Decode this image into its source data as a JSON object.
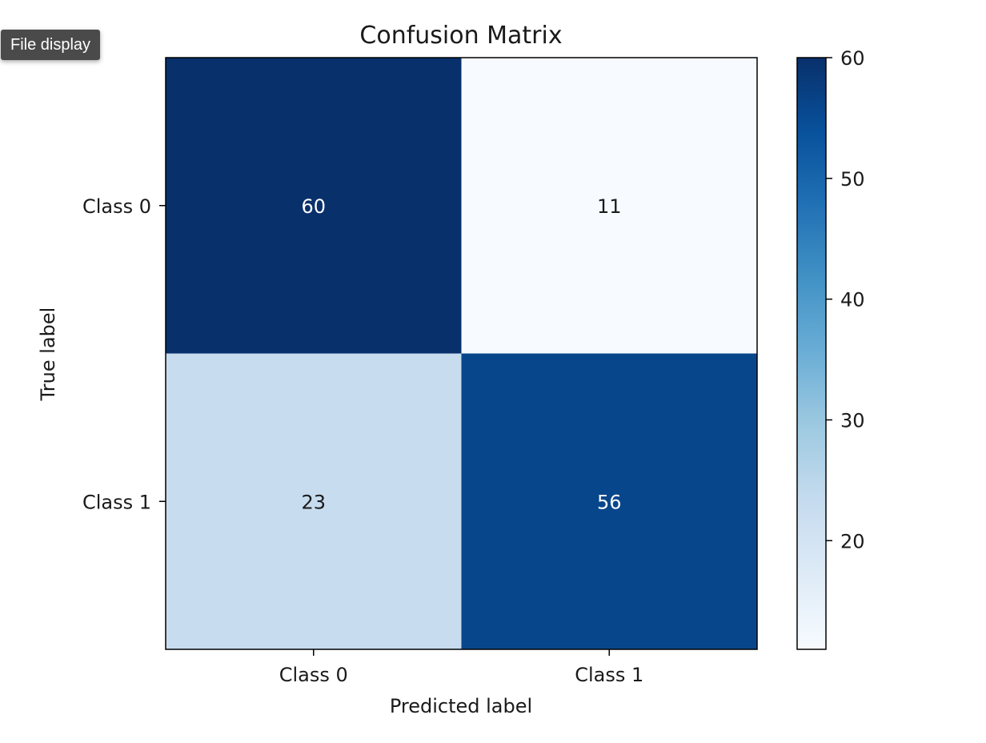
{
  "tooltip": {
    "label": "File display"
  },
  "chart_data": {
    "type": "heatmap",
    "title": "Confusion Matrix",
    "xlabel": "Predicted label",
    "ylabel": "True label",
    "x_categories": [
      "Class 0",
      "Class 1"
    ],
    "y_categories": [
      "Class 0",
      "Class 1"
    ],
    "values": [
      [
        60,
        11
      ],
      [
        23,
        56
      ]
    ],
    "colormap": "Blues",
    "colorbar": {
      "range": [
        11,
        60
      ],
      "ticks": [
        20,
        30,
        40,
        50,
        60
      ]
    },
    "colors": {
      "high": "#08306b",
      "low": "#f7fbff"
    }
  }
}
